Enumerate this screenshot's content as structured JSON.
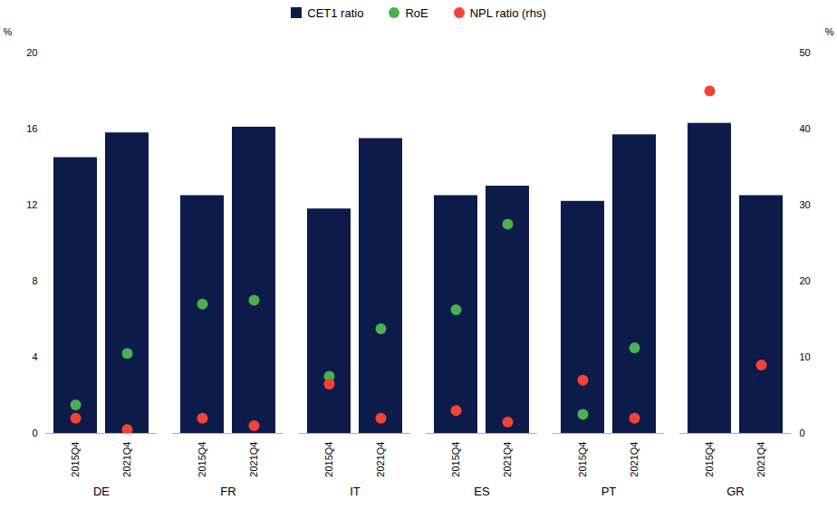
{
  "chart_data": {
    "type": "bar",
    "categories": [
      "DE",
      "FR",
      "IT",
      "ES",
      "PT",
      "GR"
    ],
    "x": [
      "2015Q4",
      "2021Q4"
    ],
    "series": [
      {
        "name": "CET1 ratio",
        "type": "bar",
        "color": "#0d1b4b",
        "values": [
          [
            14.5,
            15.8
          ],
          [
            12.5,
            16.1
          ],
          [
            11.8,
            15.5
          ],
          [
            12.5,
            13.0
          ],
          [
            12.2,
            15.7
          ],
          [
            16.3,
            12.5
          ]
        ]
      },
      {
        "name": "RoE",
        "type": "scatter",
        "color": "#4caf50",
        "values": [
          [
            1.5,
            4.2
          ],
          [
            6.8,
            7.0
          ],
          [
            3.0,
            5.5
          ],
          [
            6.5,
            11.0
          ],
          [
            1.0,
            4.5
          ],
          [
            null,
            null
          ]
        ]
      },
      {
        "name": "NPL ratio (rhs)",
        "type": "scatter",
        "axis": "y2",
        "color": "#f44336",
        "values": [
          [
            2.0,
            0.5
          ],
          [
            2.0,
            1.0
          ],
          [
            6.5,
            2.0
          ],
          [
            3.0,
            1.5
          ],
          [
            7.0,
            2.0
          ],
          [
            45.0,
            9.0
          ]
        ]
      }
    ],
    "ylim": [
      0,
      20
    ],
    "yticks": [
      0,
      4,
      8,
      12,
      16,
      20
    ],
    "y2lim": [
      0,
      50
    ],
    "y2ticks": [
      0,
      10,
      20,
      30,
      40,
      50
    ],
    "ylabel": "%",
    "y2label": "%",
    "legend": "top",
    "grid": false
  }
}
